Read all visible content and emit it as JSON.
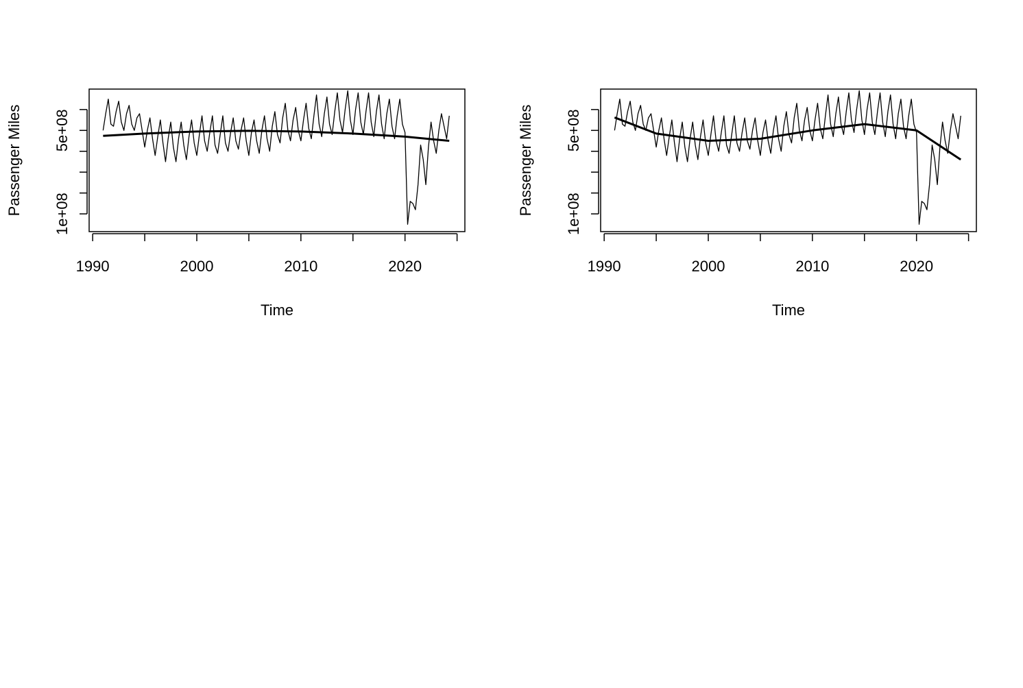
{
  "chart_data": [
    {
      "type": "line",
      "xlabel": "Time",
      "ylabel": "Passenger Miles",
      "xlim": [
        1989.66,
        2025.75
      ],
      "ylim": [
        15000000.0,
        698000000.0
      ],
      "xticks": [
        1990,
        {
          "value": 1995,
          "label": null
        },
        2000,
        {
          "value": 2005,
          "label": null
        },
        2010,
        {
          "value": 2015,
          "label": null
        },
        2020,
        {
          "value": 2025,
          "label": null
        }
      ],
      "yticks": [
        {
          "value": 100000000.0,
          "label": "1e+08"
        },
        {
          "value": 200000000.0,
          "label": null
        },
        {
          "value": 300000000.0,
          "label": null
        },
        {
          "value": 400000000.0,
          "label": null
        },
        {
          "value": 500000000.0,
          "label": "5e+08"
        },
        {
          "value": 600000000.0,
          "label": null
        }
      ],
      "x": [
        1991,
        1991.25,
        1991.5,
        1991.75,
        1992,
        1992.25,
        1992.5,
        1992.75,
        1993,
        1993.25,
        1993.5,
        1993.75,
        1994,
        1994.25,
        1994.5,
        1994.75,
        1995,
        1995.25,
        1995.5,
        1995.75,
        1996,
        1996.25,
        1996.5,
        1996.75,
        1997,
        1997.25,
        1997.5,
        1997.75,
        1998,
        1998.25,
        1998.5,
        1998.75,
        1999,
        1999.25,
        1999.5,
        1999.75,
        2000,
        2000.25,
        2000.5,
        2000.75,
        2001,
        2001.25,
        2001.5,
        2001.75,
        2002,
        2002.25,
        2002.5,
        2002.75,
        2003,
        2003.25,
        2003.5,
        2003.75,
        2004,
        2004.25,
        2004.5,
        2004.75,
        2005,
        2005.25,
        2005.5,
        2005.75,
        2006,
        2006.25,
        2006.5,
        2006.75,
        2007,
        2007.25,
        2007.5,
        2007.75,
        2008,
        2008.25,
        2008.5,
        2008.75,
        2009,
        2009.25,
        2009.5,
        2009.75,
        2010,
        2010.25,
        2010.5,
        2010.75,
        2011,
        2011.25,
        2011.5,
        2011.75,
        2012,
        2012.25,
        2012.5,
        2012.75,
        2013,
        2013.25,
        2013.5,
        2013.75,
        2014,
        2014.25,
        2014.5,
        2014.75,
        2015,
        2015.25,
        2015.5,
        2015.75,
        2016,
        2016.25,
        2016.5,
        2016.75,
        2017,
        2017.25,
        2017.5,
        2017.75,
        2018,
        2018.25,
        2018.5,
        2018.75,
        2019,
        2019.25,
        2019.5,
        2019.75,
        2020,
        2020.25,
        2020.5,
        2020.75,
        2021,
        2021.25,
        2021.5,
        2021.75,
        2022,
        2022.25,
        2022.5,
        2022.75,
        2023,
        2023.25,
        2023.5,
        2023.75,
        2024,
        2024.25
      ],
      "series": [
        {
          "color": "#000000",
          "line_width": 1.3,
          "values": [
            500000000.0,
            580000000.0,
            650000000.0,
            530000000.0,
            520000000.0,
            590000000.0,
            640000000.0,
            540000000.0,
            500000000.0,
            580000000.0,
            620000000.0,
            530000000.0,
            500000000.0,
            560000000.0,
            580000000.0,
            500000000.0,
            420000000.0,
            500000000.0,
            560000000.0,
            460000000.0,
            380000000.0,
            470000000.0,
            550000000.0,
            440000000.0,
            350000000.0,
            460000000.0,
            540000000.0,
            420000000.0,
            350000000.0,
            460000000.0,
            540000000.0,
            430000000.0,
            360000000.0,
            470000000.0,
            550000000.0,
            440000000.0,
            380000000.0,
            480000000.0,
            570000000.0,
            450000000.0,
            400000000.0,
            490000000.0,
            570000000.0,
            430000000.0,
            390000000.0,
            480000000.0,
            570000000.0,
            440000000.0,
            400000000.0,
            490000000.0,
            560000000.0,
            450000000.0,
            410000000.0,
            500000000.0,
            560000000.0,
            450000000.0,
            380000000.0,
            490000000.0,
            550000000.0,
            450000000.0,
            390000000.0,
            500000000.0,
            570000000.0,
            460000000.0,
            400000000.0,
            520000000.0,
            590000000.0,
            480000000.0,
            440000000.0,
            560000000.0,
            630000000.0,
            500000000.0,
            450000000.0,
            550000000.0,
            610000000.0,
            500000000.0,
            450000000.0,
            550000000.0,
            630000000.0,
            510000000.0,
            460000000.0,
            570000000.0,
            670000000.0,
            530000000.0,
            470000000.0,
            580000000.0,
            660000000.0,
            530000000.0,
            480000000.0,
            590000000.0,
            680000000.0,
            550000000.0,
            490000000.0,
            600000000.0,
            690000000.0,
            550000000.0,
            480000000.0,
            600000000.0,
            680000000.0,
            540000000.0,
            480000000.0,
            590000000.0,
            680000000.0,
            540000000.0,
            470000000.0,
            590000000.0,
            670000000.0,
            530000000.0,
            460000000.0,
            580000000.0,
            650000000.0,
            520000000.0,
            460000000.0,
            570000000.0,
            650000000.0,
            530000000.0,
            490000000.0,
            50000000.0,
            160000000.0,
            150000000.0,
            120000000.0,
            240000000.0,
            430000000.0,
            360000000.0,
            240000000.0,
            420000000.0,
            540000000.0,
            450000000.0,
            390000000.0,
            500000000.0,
            580000000.0,
            520000000.0,
            460000000.0,
            570000000.0
          ]
        },
        {
          "color": "#000000",
          "line_width": 3,
          "x": [
            1991,
            1995,
            2000,
            2005,
            2010,
            2015,
            2020,
            2024.25
          ],
          "values": [
            474000000.0,
            485000000.0,
            495000000.0,
            498000000.0,
            495000000.0,
            485000000.0,
            470000000.0,
            450000000.0
          ]
        }
      ]
    },
    {
      "type": "line",
      "xlabel": "Time",
      "ylabel": "Passenger Miles",
      "xlim": [
        1989.66,
        2025.75
      ],
      "ylim": [
        15000000.0,
        698000000.0
      ],
      "xticks": [
        1990,
        {
          "value": 1995,
          "label": null
        },
        2000,
        {
          "value": 2005,
          "label": null
        },
        2010,
        {
          "value": 2015,
          "label": null
        },
        2020,
        {
          "value": 2025,
          "label": null
        }
      ],
      "yticks": [
        {
          "value": 100000000.0,
          "label": "1e+08"
        },
        {
          "value": 200000000.0,
          "label": null
        },
        {
          "value": 300000000.0,
          "label": null
        },
        {
          "value": 400000000.0,
          "label": null
        },
        {
          "value": 500000000.0,
          "label": "5e+08"
        },
        {
          "value": 600000000.0,
          "label": null
        }
      ],
      "x": [
        1991,
        1991.25,
        1991.5,
        1991.75,
        1992,
        1992.25,
        1992.5,
        1992.75,
        1993,
        1993.25,
        1993.5,
        1993.75,
        1994,
        1994.25,
        1994.5,
        1994.75,
        1995,
        1995.25,
        1995.5,
        1995.75,
        1996,
        1996.25,
        1996.5,
        1996.75,
        1997,
        1997.25,
        1997.5,
        1997.75,
        1998,
        1998.25,
        1998.5,
        1998.75,
        1999,
        1999.25,
        1999.5,
        1999.75,
        2000,
        2000.25,
        2000.5,
        2000.75,
        2001,
        2001.25,
        2001.5,
        2001.75,
        2002,
        2002.25,
        2002.5,
        2002.75,
        2003,
        2003.25,
        2003.5,
        2003.75,
        2004,
        2004.25,
        2004.5,
        2004.75,
        2005,
        2005.25,
        2005.5,
        2005.75,
        2006,
        2006.25,
        2006.5,
        2006.75,
        2007,
        2007.25,
        2007.5,
        2007.75,
        2008,
        2008.25,
        2008.5,
        2008.75,
        2009,
        2009.25,
        2009.5,
        2009.75,
        2010,
        2010.25,
        2010.5,
        2010.75,
        2011,
        2011.25,
        2011.5,
        2011.75,
        2012,
        2012.25,
        2012.5,
        2012.75,
        2013,
        2013.25,
        2013.5,
        2013.75,
        2014,
        2014.25,
        2014.5,
        2014.75,
        2015,
        2015.25,
        2015.5,
        2015.75,
        2016,
        2016.25,
        2016.5,
        2016.75,
        2017,
        2017.25,
        2017.5,
        2017.75,
        2018,
        2018.25,
        2018.5,
        2018.75,
        2019,
        2019.25,
        2019.5,
        2019.75,
        2020,
        2020.25,
        2020.5,
        2020.75,
        2021,
        2021.25,
        2021.5,
        2021.75,
        2022,
        2022.25,
        2022.5,
        2022.75,
        2023,
        2023.25,
        2023.5,
        2023.75,
        2024,
        2024.25
      ],
      "series": [
        {
          "color": "#000000",
          "line_width": 1.3,
          "values": [
            500000000.0,
            580000000.0,
            650000000.0,
            530000000.0,
            520000000.0,
            590000000.0,
            640000000.0,
            540000000.0,
            500000000.0,
            580000000.0,
            620000000.0,
            530000000.0,
            500000000.0,
            560000000.0,
            580000000.0,
            500000000.0,
            420000000.0,
            500000000.0,
            560000000.0,
            460000000.0,
            380000000.0,
            470000000.0,
            550000000.0,
            440000000.0,
            350000000.0,
            460000000.0,
            540000000.0,
            420000000.0,
            350000000.0,
            460000000.0,
            540000000.0,
            430000000.0,
            360000000.0,
            470000000.0,
            550000000.0,
            440000000.0,
            380000000.0,
            480000000.0,
            570000000.0,
            450000000.0,
            400000000.0,
            490000000.0,
            570000000.0,
            430000000.0,
            390000000.0,
            480000000.0,
            570000000.0,
            440000000.0,
            400000000.0,
            490000000.0,
            560000000.0,
            450000000.0,
            410000000.0,
            500000000.0,
            560000000.0,
            450000000.0,
            380000000.0,
            490000000.0,
            550000000.0,
            450000000.0,
            390000000.0,
            500000000.0,
            570000000.0,
            460000000.0,
            400000000.0,
            520000000.0,
            590000000.0,
            480000000.0,
            440000000.0,
            560000000.0,
            630000000.0,
            500000000.0,
            450000000.0,
            550000000.0,
            610000000.0,
            500000000.0,
            450000000.0,
            550000000.0,
            630000000.0,
            510000000.0,
            460000000.0,
            570000000.0,
            670000000.0,
            530000000.0,
            470000000.0,
            580000000.0,
            660000000.0,
            530000000.0,
            480000000.0,
            590000000.0,
            680000000.0,
            550000000.0,
            490000000.0,
            600000000.0,
            690000000.0,
            550000000.0,
            480000000.0,
            600000000.0,
            680000000.0,
            540000000.0,
            480000000.0,
            590000000.0,
            680000000.0,
            540000000.0,
            470000000.0,
            590000000.0,
            670000000.0,
            530000000.0,
            460000000.0,
            580000000.0,
            650000000.0,
            520000000.0,
            460000000.0,
            570000000.0,
            650000000.0,
            530000000.0,
            490000000.0,
            50000000.0,
            160000000.0,
            150000000.0,
            120000000.0,
            240000000.0,
            430000000.0,
            360000000.0,
            240000000.0,
            420000000.0,
            540000000.0,
            450000000.0,
            390000000.0,
            500000000.0,
            580000000.0,
            520000000.0,
            460000000.0,
            570000000.0
          ]
        },
        {
          "color": "#000000",
          "line_width": 3,
          "x": [
            1991,
            1995,
            2000,
            2005,
            2010,
            2015,
            2020,
            2024.25
          ],
          "values": [
            562000000.0,
            485000000.0,
            450000000.0,
            460000000.0,
            500000000.0,
            530000000.0,
            500000000.0,
            360000000.0
          ]
        }
      ]
    }
  ]
}
